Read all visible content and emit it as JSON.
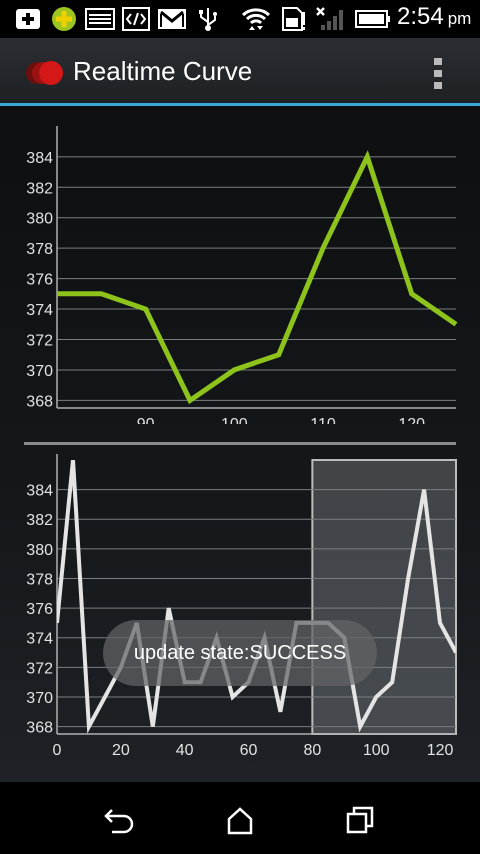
{
  "status_bar": {
    "icons": [
      "add-notification-icon",
      "plus-badge-icon",
      "gallery-icon",
      "code-icon",
      "gmail-icon",
      "usb-icon",
      "wifi-icon",
      "storage-warning-icon",
      "no-signal-icon",
      "battery-icon"
    ],
    "time": "2:54",
    "ampm": "pm"
  },
  "action_bar": {
    "title": "Realtime Curve",
    "app_icon": "record-icon",
    "menu_icon": "overflow-menu-icon",
    "accent_color": "#39a7d8"
  },
  "toast": {
    "message": "update state:SUCCESS"
  },
  "nav_bar": {
    "buttons": [
      "back-icon",
      "home-icon",
      "recents-icon"
    ]
  },
  "chart_data": [
    {
      "type": "line",
      "color": "#8dc31a",
      "x": [
        80,
        85,
        90,
        95,
        100,
        105,
        110,
        115,
        120,
        125
      ],
      "y": [
        375,
        375,
        374,
        368,
        370,
        371,
        378,
        384,
        375,
        373
      ],
      "xlim": [
        80,
        125
      ],
      "ylim": [
        367.5,
        385.5
      ],
      "x_ticks": [
        90,
        100,
        110,
        120
      ],
      "y_ticks": [
        368,
        370,
        372,
        374,
        376,
        378,
        380,
        382,
        384
      ],
      "grid": true
    },
    {
      "type": "line",
      "color": "#e4e4e4",
      "x": [
        0,
        5,
        10,
        15,
        20,
        25,
        30,
        35,
        40,
        45,
        50,
        55,
        60,
        65,
        70,
        75,
        80,
        85,
        90,
        95,
        100,
        105,
        110,
        115,
        120,
        125
      ],
      "y": [
        375,
        386,
        368,
        370,
        372,
        375,
        368,
        376,
        371,
        371,
        374,
        370,
        371,
        374,
        369,
        375,
        375,
        375,
        374,
        368,
        370,
        371,
        378,
        384,
        375,
        373
      ],
      "xlim": [
        0,
        125
      ],
      "ylim": [
        367.5,
        386
      ],
      "x_ticks": [
        0,
        20,
        40,
        60,
        80,
        100,
        120
      ],
      "y_ticks": [
        368,
        370,
        372,
        374,
        376,
        378,
        380,
        382,
        384
      ],
      "grid": true,
      "highlight_range": [
        80,
        125
      ]
    }
  ]
}
